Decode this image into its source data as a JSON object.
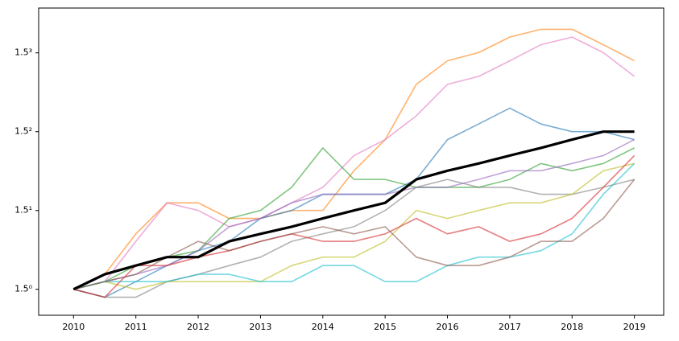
{
  "chart_data": {
    "type": "line",
    "yscale": "log",
    "log_base": 1.5,
    "x": [
      2010,
      2010.5,
      2011,
      2011.5,
      2012,
      2012.5,
      2013,
      2013.5,
      2014,
      2014.5,
      2015,
      2015.5,
      2016,
      2016.5,
      2017,
      2017.5,
      2018,
      2018.5,
      2019
    ],
    "xlim": [
      2009.44,
      2019.47
    ],
    "xticks": [
      2010,
      2011,
      2012,
      2013,
      2014,
      2015,
      2016,
      2017,
      2018,
      2019
    ],
    "ylim": [
      0.875,
      4.25
    ],
    "yticks": [
      {
        "value": 1,
        "label": "1.5⁰"
      },
      {
        "value": 1.5,
        "label": "1.5¹"
      },
      {
        "value": 2.25,
        "label": "1.5²"
      },
      {
        "value": 3.375,
        "label": "1.5³"
      }
    ],
    "series": [
      {
        "color": "#ff7f0e",
        "values": [
          1,
          1.08,
          1.33,
          1.56,
          1.56,
          1.44,
          1.44,
          1.5,
          1.5,
          1.84,
          2.16,
          2.87,
          3.24,
          3.38,
          3.66,
          3.81,
          3.81,
          3.52,
          3.24
        ]
      },
      {
        "color": "#e377c2",
        "values": [
          1,
          1.04,
          1.28,
          1.56,
          1.5,
          1.38,
          1.44,
          1.56,
          1.69,
          1.99,
          2.16,
          2.44,
          2.87,
          2.99,
          3.24,
          3.52,
          3.66,
          3.38,
          2.99
        ]
      },
      {
        "color": "#1f77b4",
        "values": [
          1,
          0.96,
          1.04,
          1.13,
          1.22,
          1.28,
          1.44,
          1.5,
          1.63,
          1.63,
          1.63,
          1.76,
          2.16,
          2.34,
          2.54,
          2.34,
          2.25,
          2.25,
          2.16
        ]
      },
      {
        "color": "#2ca02c",
        "values": [
          1,
          1.04,
          1.13,
          1.18,
          1.22,
          1.44,
          1.5,
          1.69,
          2.07,
          1.76,
          1.76,
          1.69,
          1.69,
          1.69,
          1.76,
          1.91,
          1.84,
          1.91,
          2.07
        ]
      },
      {
        "color": "#9467bd",
        "values": [
          1,
          1.04,
          1.08,
          1.13,
          1.22,
          1.38,
          1.44,
          1.56,
          1.63,
          1.63,
          1.63,
          1.69,
          1.69,
          1.76,
          1.84,
          1.84,
          1.91,
          1.99,
          2.16
        ]
      },
      {
        "color": "#7f7f7f",
        "values": [
          1,
          0.96,
          0.96,
          1.04,
          1.08,
          1.13,
          1.18,
          1.28,
          1.33,
          1.38,
          1.5,
          1.69,
          1.76,
          1.69,
          1.69,
          1.63,
          1.63,
          1.69,
          1.76
        ]
      },
      {
        "color": "#bcbd22",
        "values": [
          1,
          1.04,
          1,
          1.04,
          1.04,
          1.04,
          1.04,
          1.13,
          1.18,
          1.18,
          1.28,
          1.5,
          1.44,
          1.5,
          1.56,
          1.56,
          1.63,
          1.84,
          1.91
        ]
      },
      {
        "color": "#d62728",
        "values": [
          1,
          0.96,
          1.13,
          1.13,
          1.18,
          1.22,
          1.28,
          1.33,
          1.28,
          1.28,
          1.33,
          1.44,
          1.33,
          1.38,
          1.28,
          1.33,
          1.44,
          1.69,
          1.99
        ]
      },
      {
        "color": "#17becf",
        "values": [
          1,
          1.04,
          1.04,
          1.04,
          1.08,
          1.08,
          1.04,
          1.04,
          1.13,
          1.13,
          1.04,
          1.04,
          1.13,
          1.18,
          1.18,
          1.22,
          1.33,
          1.63,
          1.91
        ]
      },
      {
        "color": "#8c564b",
        "values": [
          1,
          1.04,
          1.08,
          1.18,
          1.28,
          1.22,
          1.28,
          1.33,
          1.38,
          1.33,
          1.38,
          1.18,
          1.13,
          1.13,
          1.18,
          1.28,
          1.28,
          1.44,
          1.76
        ]
      },
      {
        "color": "#000000",
        "values": [
          1,
          1.08,
          1.13,
          1.18,
          1.18,
          1.28,
          1.33,
          1.38,
          1.44,
          1.5,
          1.56,
          1.76,
          1.84,
          1.91,
          1.99,
          2.07,
          2.16,
          2.25,
          2.25
        ]
      }
    ]
  }
}
